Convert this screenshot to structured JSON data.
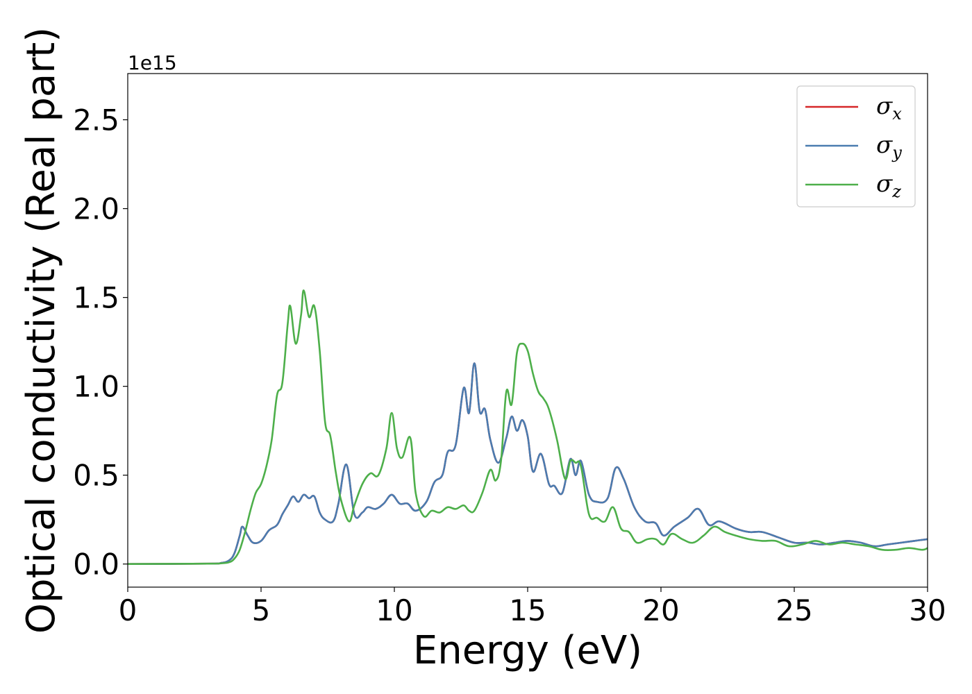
{
  "chart_data": {
    "type": "line",
    "title": "",
    "xlabel": "Energy (eV)",
    "ylabel": "Optical conductivity (Real part)",
    "y_offset_text": "1e15",
    "xlim": [
      0,
      30
    ],
    "ylim": [
      -0.13,
      2.76
    ],
    "xticks": [
      0,
      5,
      10,
      15,
      20,
      25,
      30
    ],
    "xtick_labels": [
      "0",
      "5",
      "10",
      "15",
      "20",
      "25",
      "30"
    ],
    "yticks": [
      0.0,
      0.5,
      1.0,
      1.5,
      2.0,
      2.5
    ],
    "ytick_labels": [
      "0.0",
      "0.5",
      "1.0",
      "1.5",
      "2.0",
      "2.5"
    ],
    "grid": false,
    "legend_position": "top-right",
    "series": [
      {
        "name": "σx",
        "name_base": "σ",
        "name_sub": "x",
        "color": "#d62728",
        "x": [
          0,
          3,
          3.5,
          3.8,
          4.0,
          4.2,
          4.3,
          4.5,
          4.7,
          5.0,
          5.3,
          5.6,
          5.8,
          6.0,
          6.2,
          6.4,
          6.6,
          6.8,
          7.0,
          7.2,
          7.4,
          7.7,
          7.9,
          8.2,
          8.5,
          8.8,
          9.0,
          9.3,
          9.6,
          9.9,
          10.2,
          10.5,
          10.8,
          11.2,
          11.5,
          11.8,
          12.0,
          12.3,
          12.6,
          12.8,
          13.0,
          13.2,
          13.4,
          13.6,
          13.9,
          14.2,
          14.4,
          14.6,
          14.8,
          15.0,
          15.2,
          15.5,
          15.8,
          16.0,
          16.3,
          16.6,
          16.8,
          17.0,
          17.3,
          17.6,
          18.0,
          18.3,
          18.6,
          19.0,
          19.4,
          19.8,
          20.1,
          20.5,
          21.0,
          21.4,
          21.8,
          22.2,
          22.8,
          23.3,
          23.8,
          24.4,
          25.0,
          25.5,
          26.0,
          26.5,
          27.0,
          27.5,
          28.0,
          28.5,
          29.0,
          29.5,
          30.0
        ],
        "values": [
          0.0,
          0.002,
          0.006,
          0.02,
          0.06,
          0.16,
          0.21,
          0.16,
          0.12,
          0.13,
          0.19,
          0.22,
          0.28,
          0.33,
          0.38,
          0.35,
          0.39,
          0.37,
          0.38,
          0.29,
          0.25,
          0.24,
          0.34,
          0.56,
          0.28,
          0.29,
          0.32,
          0.31,
          0.34,
          0.39,
          0.34,
          0.34,
          0.3,
          0.35,
          0.46,
          0.5,
          0.63,
          0.67,
          0.99,
          0.85,
          1.13,
          0.86,
          0.87,
          0.7,
          0.57,
          0.71,
          0.83,
          0.75,
          0.81,
          0.72,
          0.52,
          0.62,
          0.45,
          0.44,
          0.4,
          0.59,
          0.5,
          0.58,
          0.39,
          0.35,
          0.37,
          0.54,
          0.48,
          0.32,
          0.24,
          0.23,
          0.16,
          0.21,
          0.26,
          0.31,
          0.22,
          0.24,
          0.2,
          0.18,
          0.18,
          0.15,
          0.12,
          0.12,
          0.11,
          0.12,
          0.13,
          0.12,
          0.1,
          0.11,
          0.12,
          0.13,
          0.14
        ]
      },
      {
        "name": "σy",
        "name_base": "σ",
        "name_sub": "y",
        "color": "#4a7cb0",
        "x": [
          0,
          3,
          3.5,
          3.8,
          4.0,
          4.2,
          4.3,
          4.5,
          4.7,
          5.0,
          5.3,
          5.6,
          5.8,
          6.0,
          6.2,
          6.4,
          6.6,
          6.8,
          7.0,
          7.2,
          7.4,
          7.7,
          7.9,
          8.2,
          8.5,
          8.8,
          9.0,
          9.3,
          9.6,
          9.9,
          10.2,
          10.5,
          10.8,
          11.2,
          11.5,
          11.8,
          12.0,
          12.3,
          12.6,
          12.8,
          13.0,
          13.2,
          13.4,
          13.6,
          13.9,
          14.2,
          14.4,
          14.6,
          14.8,
          15.0,
          15.2,
          15.5,
          15.8,
          16.0,
          16.3,
          16.6,
          16.8,
          17.0,
          17.3,
          17.6,
          18.0,
          18.3,
          18.6,
          19.0,
          19.4,
          19.8,
          20.1,
          20.5,
          21.0,
          21.4,
          21.8,
          22.2,
          22.8,
          23.3,
          23.8,
          24.4,
          25.0,
          25.5,
          26.0,
          26.5,
          27.0,
          27.5,
          28.0,
          28.5,
          29.0,
          29.5,
          30.0
        ],
        "values": [
          0.0,
          0.002,
          0.006,
          0.02,
          0.06,
          0.16,
          0.21,
          0.16,
          0.12,
          0.13,
          0.19,
          0.22,
          0.28,
          0.33,
          0.38,
          0.35,
          0.39,
          0.37,
          0.38,
          0.29,
          0.25,
          0.24,
          0.34,
          0.56,
          0.28,
          0.29,
          0.32,
          0.31,
          0.34,
          0.39,
          0.34,
          0.34,
          0.3,
          0.35,
          0.46,
          0.5,
          0.63,
          0.67,
          0.99,
          0.85,
          1.13,
          0.86,
          0.87,
          0.7,
          0.57,
          0.71,
          0.83,
          0.75,
          0.81,
          0.72,
          0.52,
          0.62,
          0.45,
          0.44,
          0.4,
          0.59,
          0.5,
          0.58,
          0.39,
          0.35,
          0.37,
          0.54,
          0.48,
          0.32,
          0.24,
          0.23,
          0.16,
          0.21,
          0.26,
          0.31,
          0.22,
          0.24,
          0.2,
          0.18,
          0.18,
          0.15,
          0.12,
          0.12,
          0.11,
          0.12,
          0.13,
          0.12,
          0.1,
          0.11,
          0.12,
          0.13,
          0.14
        ]
      },
      {
        "name": "σz",
        "name_base": "σ",
        "name_sub": "z",
        "color": "#4daf4a",
        "x": [
          0,
          3,
          3.5,
          3.8,
          4.0,
          4.2,
          4.4,
          4.6,
          4.8,
          5.0,
          5.2,
          5.4,
          5.6,
          5.8,
          6.0,
          6.1,
          6.3,
          6.5,
          6.6,
          6.8,
          7.0,
          7.2,
          7.4,
          7.6,
          7.8,
          8.0,
          8.3,
          8.5,
          8.8,
          9.1,
          9.4,
          9.7,
          9.9,
          10.1,
          10.3,
          10.6,
          10.8,
          11.1,
          11.4,
          11.7,
          12.0,
          12.3,
          12.6,
          12.8,
          13.0,
          13.3,
          13.6,
          13.8,
          14.0,
          14.2,
          14.4,
          14.6,
          14.8,
          15.0,
          15.2,
          15.4,
          15.6,
          15.8,
          16.1,
          16.4,
          16.6,
          16.8,
          17.0,
          17.3,
          17.6,
          17.9,
          18.2,
          18.5,
          18.8,
          19.1,
          19.5,
          19.8,
          20.1,
          20.4,
          20.8,
          21.2,
          21.6,
          22.0,
          22.4,
          22.8,
          23.3,
          23.8,
          24.3,
          24.8,
          25.3,
          25.8,
          26.3,
          26.8,
          27.3,
          27.8,
          28.3,
          28.8,
          29.3,
          29.8,
          30.0
        ],
        "values": [
          0.0,
          0.002,
          0.004,
          0.01,
          0.03,
          0.08,
          0.18,
          0.3,
          0.4,
          0.45,
          0.55,
          0.7,
          0.95,
          1.02,
          1.35,
          1.45,
          1.24,
          1.4,
          1.54,
          1.39,
          1.45,
          1.2,
          0.8,
          0.72,
          0.52,
          0.36,
          0.24,
          0.33,
          0.45,
          0.51,
          0.5,
          0.65,
          0.85,
          0.65,
          0.6,
          0.71,
          0.4,
          0.27,
          0.3,
          0.29,
          0.32,
          0.31,
          0.33,
          0.3,
          0.3,
          0.4,
          0.53,
          0.47,
          0.58,
          0.97,
          0.9,
          1.19,
          1.24,
          1.2,
          1.07,
          0.97,
          0.93,
          0.87,
          0.7,
          0.48,
          0.58,
          0.57,
          0.55,
          0.28,
          0.26,
          0.24,
          0.32,
          0.2,
          0.18,
          0.12,
          0.14,
          0.14,
          0.11,
          0.17,
          0.14,
          0.12,
          0.16,
          0.21,
          0.18,
          0.16,
          0.14,
          0.13,
          0.13,
          0.1,
          0.11,
          0.13,
          0.11,
          0.12,
          0.11,
          0.1,
          0.08,
          0.08,
          0.09,
          0.08,
          0.09
        ]
      }
    ]
  }
}
